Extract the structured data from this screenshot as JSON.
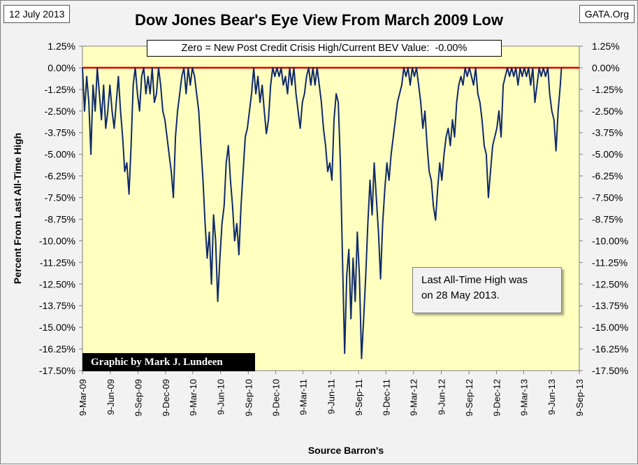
{
  "header": {
    "date_label": "12 July 2013",
    "source_label": "GATA.Org",
    "title": "Dow Jones Bear's Eye View From March 2009 Low"
  },
  "annotations": {
    "banner": "Zero = New Post Credit Crisis High/Current BEV Value:  -0.00%",
    "note_line1": "Last All-Time High was",
    "note_line2": "on 28 May 2013.",
    "credit": "Graphic by Mark J. Lundeen"
  },
  "colors": {
    "plot_background": "#ffffc0",
    "series": "#0f2a6b",
    "zero_line": "#e00000"
  },
  "chart_data": {
    "type": "line",
    "title": "Dow Jones Bear's Eye View From March 2009 Low",
    "xlabel": "Source Barron's",
    "ylabel": "Percent From Last All-Time High",
    "ylim": [
      -17.5,
      1.25
    ],
    "xlim": [
      "2009-03-09",
      "2013-09-09"
    ],
    "grid": false,
    "y_ticks": [
      "1.25%",
      "0.00%",
      "-1.25%",
      "-2.50%",
      "-3.75%",
      "-5.00%",
      "-6.25%",
      "-7.50%",
      "-8.75%",
      "-10.00%",
      "-11.25%",
      "-12.50%",
      "-13.75%",
      "-15.00%",
      "-16.25%",
      "-17.50%"
    ],
    "y_tick_values": [
      1.25,
      0,
      -1.25,
      -2.5,
      -3.75,
      -5,
      -6.25,
      -7.5,
      -8.75,
      -10,
      -11.25,
      -12.5,
      -13.75,
      -15,
      -16.25,
      -17.5
    ],
    "x_ticks": [
      "9-Mar-09",
      "9-Jun-09",
      "9-Sep-09",
      "9-Dec-09",
      "9-Mar-10",
      "9-Jun-10",
      "9-Sep-10",
      "9-Dec-10",
      "9-Mar-11",
      "9-Jun-11",
      "9-Sep-11",
      "9-Dec-11",
      "9-Mar-12",
      "9-Jun-12",
      "9-Sep-12",
      "9-Dec-12",
      "9-Mar-13",
      "9-Jun-13",
      "9-Sep-13"
    ],
    "reference_line": {
      "y": 0,
      "label": "Zero = New Post Credit Crisis High"
    },
    "series": [
      {
        "points": [
          [
            "2009-03-09",
            0.0
          ],
          [
            "2009-03-16",
            -2.5
          ],
          [
            "2009-03-23",
            -0.5
          ],
          [
            "2009-03-30",
            -2.0
          ],
          [
            "2009-04-06",
            -5.0
          ],
          [
            "2009-04-13",
            -1.0
          ],
          [
            "2009-04-20",
            -2.5
          ],
          [
            "2009-04-27",
            0.0
          ],
          [
            "2009-05-04",
            -1.5
          ],
          [
            "2009-05-11",
            -3.0
          ],
          [
            "2009-05-18",
            -1.0
          ],
          [
            "2009-05-25",
            -3.5
          ],
          [
            "2009-06-01",
            -2.5
          ],
          [
            "2009-06-08",
            -1.0
          ],
          [
            "2009-06-15",
            -2.5
          ],
          [
            "2009-06-22",
            -3.5
          ],
          [
            "2009-06-29",
            -2.0
          ],
          [
            "2009-07-06",
            -0.5
          ],
          [
            "2009-07-13",
            -2.5
          ],
          [
            "2009-07-20",
            -4.0
          ],
          [
            "2009-07-27",
            -6.0
          ],
          [
            "2009-08-03",
            -5.5
          ],
          [
            "2009-08-10",
            -7.3
          ],
          [
            "2009-08-17",
            -4.5
          ],
          [
            "2009-08-24",
            -1.0
          ],
          [
            "2009-08-31",
            0.0
          ],
          [
            "2009-09-07",
            -1.5
          ],
          [
            "2009-09-14",
            -2.5
          ],
          [
            "2009-09-21",
            -0.5
          ],
          [
            "2009-09-28",
            0.0
          ],
          [
            "2009-10-05",
            -1.5
          ],
          [
            "2009-10-12",
            -0.5
          ],
          [
            "2009-10-19",
            -1.5
          ],
          [
            "2009-10-26",
            0.0
          ],
          [
            "2009-11-02",
            -2.0
          ],
          [
            "2009-11-09",
            -1.5
          ],
          [
            "2009-11-16",
            0.0
          ],
          [
            "2009-11-23",
            -1.0
          ],
          [
            "2009-11-30",
            -2.5
          ],
          [
            "2009-12-07",
            -3.0
          ],
          [
            "2009-12-14",
            -4.0
          ],
          [
            "2009-12-21",
            -5.0
          ],
          [
            "2009-12-28",
            -6.0
          ],
          [
            "2010-01-04",
            -7.5
          ],
          [
            "2010-01-11",
            -4.0
          ],
          [
            "2010-01-18",
            -2.5
          ],
          [
            "2010-01-25",
            -1.5
          ],
          [
            "2010-02-01",
            -0.5
          ],
          [
            "2010-02-08",
            0.0
          ],
          [
            "2010-02-15",
            -1.5
          ],
          [
            "2010-02-22",
            0.0
          ],
          [
            "2010-03-01",
            -1.0
          ],
          [
            "2010-03-08",
            0.0
          ],
          [
            "2010-03-15",
            -0.5
          ],
          [
            "2010-03-22",
            -1.5
          ],
          [
            "2010-03-29",
            -2.5
          ],
          [
            "2010-04-05",
            -4.5
          ],
          [
            "2010-04-12",
            -6.5
          ],
          [
            "2010-04-19",
            -9.0
          ],
          [
            "2010-04-26",
            -11.0
          ],
          [
            "2010-05-03",
            -9.5
          ],
          [
            "2010-05-10",
            -12.5
          ],
          [
            "2010-05-17",
            -8.5
          ],
          [
            "2010-05-24",
            -10.0
          ],
          [
            "2010-05-31",
            -13.5
          ],
          [
            "2010-06-07",
            -11.0
          ],
          [
            "2010-06-14",
            -9.0
          ],
          [
            "2010-06-21",
            -8.0
          ],
          [
            "2010-06-28",
            -5.5
          ],
          [
            "2010-07-05",
            -4.5
          ],
          [
            "2010-07-12",
            -6.5
          ],
          [
            "2010-07-19",
            -8.0
          ],
          [
            "2010-07-26",
            -10.0
          ],
          [
            "2010-08-02",
            -9.0
          ],
          [
            "2010-08-09",
            -10.8
          ],
          [
            "2010-08-16",
            -8.0
          ],
          [
            "2010-08-23",
            -6.0
          ],
          [
            "2010-08-30",
            -4.0
          ],
          [
            "2010-09-06",
            -3.5
          ],
          [
            "2010-09-13",
            -2.5
          ],
          [
            "2010-09-20",
            -1.5
          ],
          [
            "2010-09-27",
            0.0
          ],
          [
            "2010-10-04",
            -1.5
          ],
          [
            "2010-10-11",
            -0.5
          ],
          [
            "2010-10-18",
            -2.0
          ],
          [
            "2010-10-25",
            -1.0
          ],
          [
            "2010-11-01",
            -2.5
          ],
          [
            "2010-11-08",
            -3.8
          ],
          [
            "2010-11-15",
            -3.0
          ],
          [
            "2010-11-22",
            -1.0
          ],
          [
            "2010-11-29",
            0.0
          ],
          [
            "2010-12-06",
            -0.5
          ],
          [
            "2010-12-13",
            0.0
          ],
          [
            "2010-12-20",
            -0.5
          ],
          [
            "2010-12-27",
            0.0
          ],
          [
            "2011-01-03",
            -1.0
          ],
          [
            "2011-01-10",
            -0.5
          ],
          [
            "2011-01-17",
            -1.5
          ],
          [
            "2011-01-24",
            0.0
          ],
          [
            "2011-01-31",
            -1.0
          ],
          [
            "2011-02-07",
            0.0
          ],
          [
            "2011-02-14",
            -1.5
          ],
          [
            "2011-02-21",
            -2.5
          ],
          [
            "2011-02-28",
            -3.5
          ],
          [
            "2011-03-07",
            -2.0
          ],
          [
            "2011-03-14",
            -1.5
          ],
          [
            "2011-03-21",
            -0.5
          ],
          [
            "2011-03-28",
            0.0
          ],
          [
            "2011-04-04",
            -1.0
          ],
          [
            "2011-04-11",
            0.0
          ],
          [
            "2011-04-18",
            -1.0
          ],
          [
            "2011-04-25",
            0.0
          ],
          [
            "2011-05-02",
            -1.0
          ],
          [
            "2011-05-09",
            -2.0
          ],
          [
            "2011-05-16",
            -3.5
          ],
          [
            "2011-05-23",
            -4.5
          ],
          [
            "2011-05-30",
            -6.0
          ],
          [
            "2011-06-06",
            -5.5
          ],
          [
            "2011-06-13",
            -6.5
          ],
          [
            "2011-06-20",
            -3.0
          ],
          [
            "2011-06-27",
            -1.5
          ],
          [
            "2011-07-04",
            -2.0
          ],
          [
            "2011-07-11",
            -5.5
          ],
          [
            "2011-07-18",
            -11.0
          ],
          [
            "2011-07-25",
            -16.5
          ],
          [
            "2011-08-01",
            -12.0
          ],
          [
            "2011-08-08",
            -10.5
          ],
          [
            "2011-08-15",
            -14.5
          ],
          [
            "2011-08-22",
            -11.0
          ],
          [
            "2011-08-29",
            -13.5
          ],
          [
            "2011-09-05",
            -9.5
          ],
          [
            "2011-09-12",
            -12.0
          ],
          [
            "2011-09-19",
            -16.8
          ],
          [
            "2011-09-26",
            -14.5
          ],
          [
            "2011-10-03",
            -12.0
          ],
          [
            "2011-10-10",
            -9.0
          ],
          [
            "2011-10-17",
            -6.5
          ],
          [
            "2011-10-24",
            -8.5
          ],
          [
            "2011-10-31",
            -5.5
          ],
          [
            "2011-11-07",
            -7.5
          ],
          [
            "2011-11-14",
            -9.5
          ],
          [
            "2011-11-21",
            -12.2
          ],
          [
            "2011-11-28",
            -9.0
          ],
          [
            "2011-12-05",
            -7.0
          ],
          [
            "2011-12-12",
            -5.5
          ],
          [
            "2011-12-19",
            -6.5
          ],
          [
            "2011-12-26",
            -5.0
          ],
          [
            "2012-01-02",
            -4.0
          ],
          [
            "2012-01-09",
            -3.0
          ],
          [
            "2012-01-16",
            -2.0
          ],
          [
            "2012-01-23",
            -1.5
          ],
          [
            "2012-01-30",
            -1.0
          ],
          [
            "2012-02-06",
            0.0
          ],
          [
            "2012-02-13",
            -0.5
          ],
          [
            "2012-02-20",
            0.0
          ],
          [
            "2012-02-27",
            -1.0
          ],
          [
            "2012-03-05",
            0.0
          ],
          [
            "2012-03-12",
            -0.5
          ],
          [
            "2012-03-19",
            0.0
          ],
          [
            "2012-03-26",
            -1.0
          ],
          [
            "2012-04-02",
            -2.0
          ],
          [
            "2012-04-09",
            -3.5
          ],
          [
            "2012-04-16",
            -2.5
          ],
          [
            "2012-04-23",
            -4.5
          ],
          [
            "2012-04-30",
            -6.0
          ],
          [
            "2012-05-07",
            -6.5
          ],
          [
            "2012-05-14",
            -8.0
          ],
          [
            "2012-05-21",
            -8.8
          ],
          [
            "2012-05-28",
            -7.0
          ],
          [
            "2012-06-04",
            -5.5
          ],
          [
            "2012-06-11",
            -6.5
          ],
          [
            "2012-06-18",
            -5.0
          ],
          [
            "2012-06-25",
            -4.0
          ],
          [
            "2012-07-02",
            -3.5
          ],
          [
            "2012-07-09",
            -4.5
          ],
          [
            "2012-07-16",
            -3.0
          ],
          [
            "2012-07-23",
            -4.0
          ],
          [
            "2012-07-30",
            -2.0
          ],
          [
            "2012-08-06",
            -1.0
          ],
          [
            "2012-08-13",
            -0.5
          ],
          [
            "2012-08-20",
            -1.0
          ],
          [
            "2012-08-27",
            0.0
          ],
          [
            "2012-09-03",
            -0.5
          ],
          [
            "2012-09-10",
            0.0
          ],
          [
            "2012-09-17",
            -0.5
          ],
          [
            "2012-09-24",
            -1.0
          ],
          [
            "2012-10-01",
            0.0
          ],
          [
            "2012-10-08",
            -1.5
          ],
          [
            "2012-10-15",
            -2.0
          ],
          [
            "2012-10-22",
            -3.0
          ],
          [
            "2012-10-29",
            -4.5
          ],
          [
            "2012-11-05",
            -5.0
          ],
          [
            "2012-11-12",
            -7.5
          ],
          [
            "2012-11-19",
            -6.0
          ],
          [
            "2012-11-26",
            -4.5
          ],
          [
            "2012-12-03",
            -4.0
          ],
          [
            "2012-12-10",
            -3.5
          ],
          [
            "2012-12-17",
            -2.5
          ],
          [
            "2012-12-24",
            -4.0
          ],
          [
            "2012-12-31",
            -1.0
          ],
          [
            "2013-01-07",
            -0.5
          ],
          [
            "2013-01-14",
            0.0
          ],
          [
            "2013-01-21",
            -0.5
          ],
          [
            "2013-01-28",
            0.0
          ],
          [
            "2013-02-04",
            -0.5
          ],
          [
            "2013-02-11",
            0.0
          ],
          [
            "2013-02-18",
            -1.0
          ],
          [
            "2013-02-25",
            0.0
          ],
          [
            "2013-03-04",
            -0.5
          ],
          [
            "2013-03-11",
            0.0
          ],
          [
            "2013-03-18",
            -0.5
          ],
          [
            "2013-03-25",
            0.0
          ],
          [
            "2013-04-01",
            -1.0
          ],
          [
            "2013-04-08",
            0.0
          ],
          [
            "2013-04-15",
            -2.0
          ],
          [
            "2013-04-22",
            -1.0
          ],
          [
            "2013-04-29",
            0.0
          ],
          [
            "2013-05-06",
            -0.5
          ],
          [
            "2013-05-13",
            0.0
          ],
          [
            "2013-05-20",
            -0.5
          ],
          [
            "2013-05-28",
            0.0
          ],
          [
            "2013-06-03",
            -1.5
          ],
          [
            "2013-06-10",
            -2.5
          ],
          [
            "2013-06-17",
            -3.0
          ],
          [
            "2013-06-24",
            -4.8
          ],
          [
            "2013-07-01",
            -2.5
          ],
          [
            "2013-07-08",
            -1.0
          ],
          [
            "2013-07-12",
            0.0
          ]
        ]
      }
    ]
  }
}
